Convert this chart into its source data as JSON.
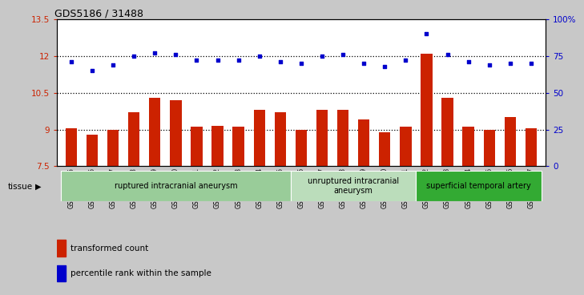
{
  "title": "GDS5186 / 31488",
  "samples": [
    "GSM1306885",
    "GSM1306886",
    "GSM1306887",
    "GSM1306888",
    "GSM1306889",
    "GSM1306890",
    "GSM1306891",
    "GSM1306892",
    "GSM1306893",
    "GSM1306894",
    "GSM1306895",
    "GSM1306896",
    "GSM1306897",
    "GSM1306898",
    "GSM1306899",
    "GSM1306900",
    "GSM1306901",
    "GSM1306902",
    "GSM1306903",
    "GSM1306904",
    "GSM1306905",
    "GSM1306906",
    "GSM1306907"
  ],
  "bar_values": [
    9.05,
    8.8,
    9.0,
    9.7,
    10.3,
    10.2,
    9.1,
    9.15,
    9.1,
    9.8,
    9.7,
    9.0,
    9.8,
    9.8,
    9.4,
    8.9,
    9.1,
    12.1,
    10.3,
    9.1,
    9.0,
    9.5,
    9.05
  ],
  "dot_values": [
    71,
    65,
    69,
    75,
    77,
    76,
    72,
    72,
    72,
    75,
    71,
    70,
    75,
    76,
    70,
    68,
    72,
    90,
    76,
    71,
    69,
    70,
    70
  ],
  "ylim_left": [
    7.5,
    13.5
  ],
  "ylim_right": [
    0,
    100
  ],
  "yticks_left": [
    7.5,
    9.0,
    10.5,
    12.0,
    13.5
  ],
  "yticks_right": [
    0,
    25,
    50,
    75,
    100
  ],
  "ytick_labels_left": [
    "7.5",
    "9",
    "10.5",
    "12",
    "13.5"
  ],
  "ytick_labels_right": [
    "0",
    "25",
    "50",
    "75",
    "100%"
  ],
  "hlines": [
    9.0,
    10.5,
    12.0
  ],
  "bar_color": "#cc2200",
  "dot_color": "#0000cc",
  "fig_bg": "#c8c8c8",
  "plot_bg": "#ffffff",
  "tissue_groups": [
    {
      "label": "ruptured intracranial aneurysm",
      "start": 0,
      "end": 11,
      "color": "#99cc99"
    },
    {
      "label": "unruptured intracranial\naneurysm",
      "start": 11,
      "end": 17,
      "color": "#bbddbb"
    },
    {
      "label": "superficial temporal artery",
      "start": 17,
      "end": 23,
      "color": "#33aa33"
    }
  ],
  "legend_items": [
    {
      "label": "transformed count",
      "color": "#cc2200"
    },
    {
      "label": "percentile rank within the sample",
      "color": "#0000cc"
    }
  ]
}
